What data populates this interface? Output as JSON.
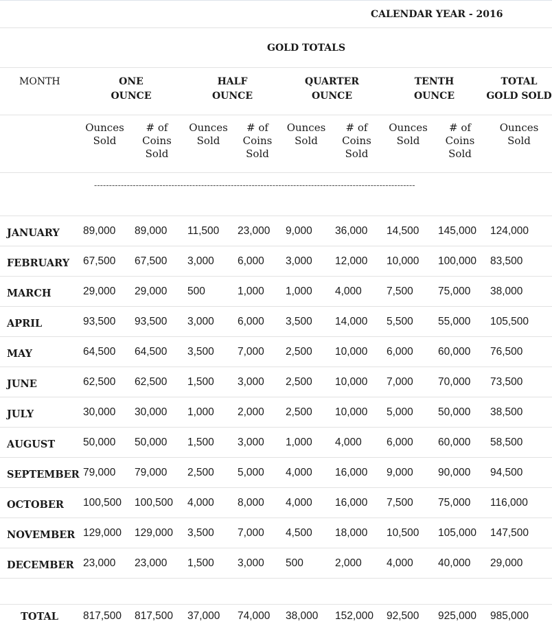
{
  "calendar_title": "CALENDAR YEAR - 2016",
  "section_title": "GOLD TOTALS",
  "month_header": "MONTH",
  "groups": [
    {
      "line1": "ONE",
      "line2": "OUNCE"
    },
    {
      "line1": "HALF",
      "line2": "OUNCE"
    },
    {
      "line1": "QUARTER",
      "line2": "OUNCE"
    },
    {
      "line1": "TENTH",
      "line2": "OUNCE"
    },
    {
      "line1": "TOTAL",
      "line2": "GOLD SOLD"
    }
  ],
  "subheaders": {
    "ounces": [
      "Ounces",
      "Sold"
    ],
    "coins": [
      "# of",
      "Coins",
      "Sold"
    ]
  },
  "divider": "------------------------------------------------------------------------------------------------------------",
  "rows": [
    {
      "month": "JANUARY",
      "v": [
        "89,000",
        "89,000",
        "11,500",
        "23,000",
        "9,000",
        "36,000",
        "14,500",
        "145,000",
        "124,000"
      ]
    },
    {
      "month": "FEBRUARY",
      "v": [
        "67,500",
        "67,500",
        "3,000",
        "6,000",
        "3,000",
        "12,000",
        "10,000",
        "100,000",
        "83,500"
      ]
    },
    {
      "month": "MARCH",
      "v": [
        "29,000",
        "29,000",
        "500",
        "1,000",
        "1,000",
        "4,000",
        "7,500",
        "75,000",
        "38,000"
      ]
    },
    {
      "month": "APRIL",
      "v": [
        "93,500",
        "93,500",
        "3,000",
        "6,000",
        "3,500",
        "14,000",
        "5,500",
        "55,000",
        "105,500"
      ]
    },
    {
      "month": "MAY",
      "v": [
        "64,500",
        "64,500",
        "3,500",
        "7,000",
        "2,500",
        "10,000",
        "6,000",
        "60,000",
        "76,500"
      ]
    },
    {
      "month": "JUNE",
      "v": [
        "62,500",
        "62,500",
        "1,500",
        "3,000",
        "2,500",
        "10,000",
        "7,000",
        "70,000",
        "73,500"
      ]
    },
    {
      "month": "JULY",
      "v": [
        "30,000",
        "30,000",
        "1,000",
        "2,000",
        "2,500",
        "10,000",
        "5,000",
        "50,000",
        "38,500"
      ]
    },
    {
      "month": "AUGUST",
      "v": [
        "50,000",
        "50,000",
        "1,500",
        "3,000",
        "1,000",
        "4,000",
        "6,000",
        "60,000",
        "58,500"
      ]
    },
    {
      "month": "SEPTEMBER",
      "v": [
        "79,000",
        "79,000",
        "2,500",
        "5,000",
        "4,000",
        "16,000",
        "9,000",
        "90,000",
        "94,500"
      ]
    },
    {
      "month": "OCTOBER",
      "v": [
        "100,500",
        "100,500",
        "4,000",
        "8,000",
        "4,000",
        "16,000",
        "7,500",
        "75,000",
        "116,000"
      ]
    },
    {
      "month": "NOVEMBER",
      "v": [
        "129,000",
        "129,000",
        "3,500",
        "7,000",
        "4,500",
        "18,000",
        "10,500",
        "105,000",
        "147,500"
      ]
    },
    {
      "month": "DECEMBER",
      "v": [
        "23,000",
        "23,000",
        "1,500",
        "3,000",
        "500",
        "2,000",
        "4,000",
        "40,000",
        "29,000"
      ]
    }
  ],
  "total": {
    "label": "TOTAL",
    "v": [
      "817,500",
      "817,500",
      "37,000",
      "74,000",
      "38,000",
      "152,000",
      "92,500",
      "925,000",
      "985,000"
    ]
  }
}
